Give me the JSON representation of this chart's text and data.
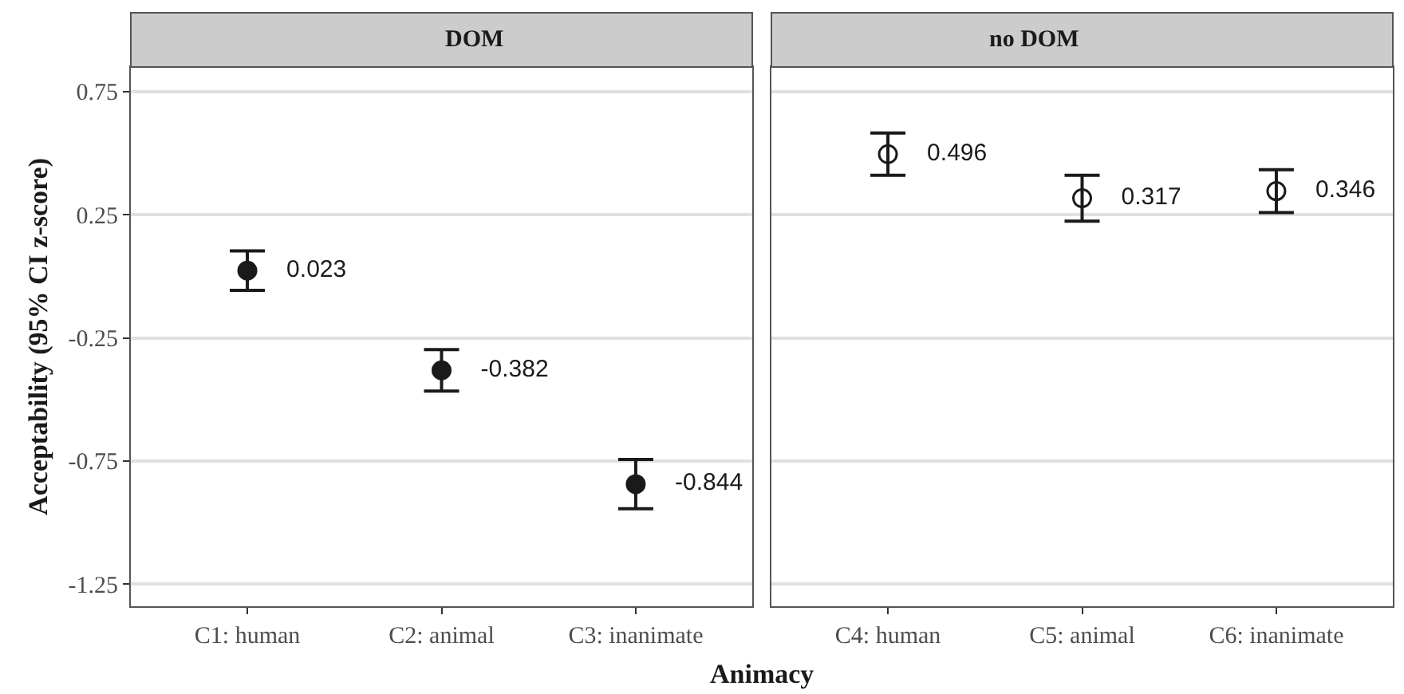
{
  "chart_data": [
    {
      "type": "scatter",
      "title": "DOM",
      "xlabel": "Animacy",
      "ylabel": "Acceptability (95% CI z-score)",
      "categories": [
        "C1: human",
        "C2: animal",
        "C3: inanimate"
      ],
      "series": [
        {
          "color": "#1a1a1a",
          "values": [
            0.023,
            -0.382,
            -0.844
          ],
          "errors": [
            0.08,
            0.084,
            0.1
          ]
        }
      ],
      "data_labels": true,
      "marker": "circle",
      "ylim": [
        -1.34,
        0.85
      ],
      "yticks": [
        0.75,
        0.25,
        -0.25,
        -0.75,
        -1.25
      ],
      "grid": "y",
      "legend": false
    },
    {
      "type": "scatter",
      "title": "no DOM",
      "categories": [
        "C4: human",
        "C5: animal",
        "C6: inanimate"
      ],
      "series": [
        {
          "color": "#1a1a1a",
          "values": [
            0.496,
            0.317,
            0.346
          ],
          "errors": [
            0.086,
            0.093,
            0.087
          ]
        }
      ],
      "data_labels": true,
      "marker": "circle",
      "ylim": [
        -1.34,
        0.85
      ],
      "yticks": [
        0.75,
        0.25,
        -0.25,
        -0.75,
        -1.25
      ],
      "grid": "y",
      "legend": false,
      "tick_labels": "x"
    }
  ]
}
